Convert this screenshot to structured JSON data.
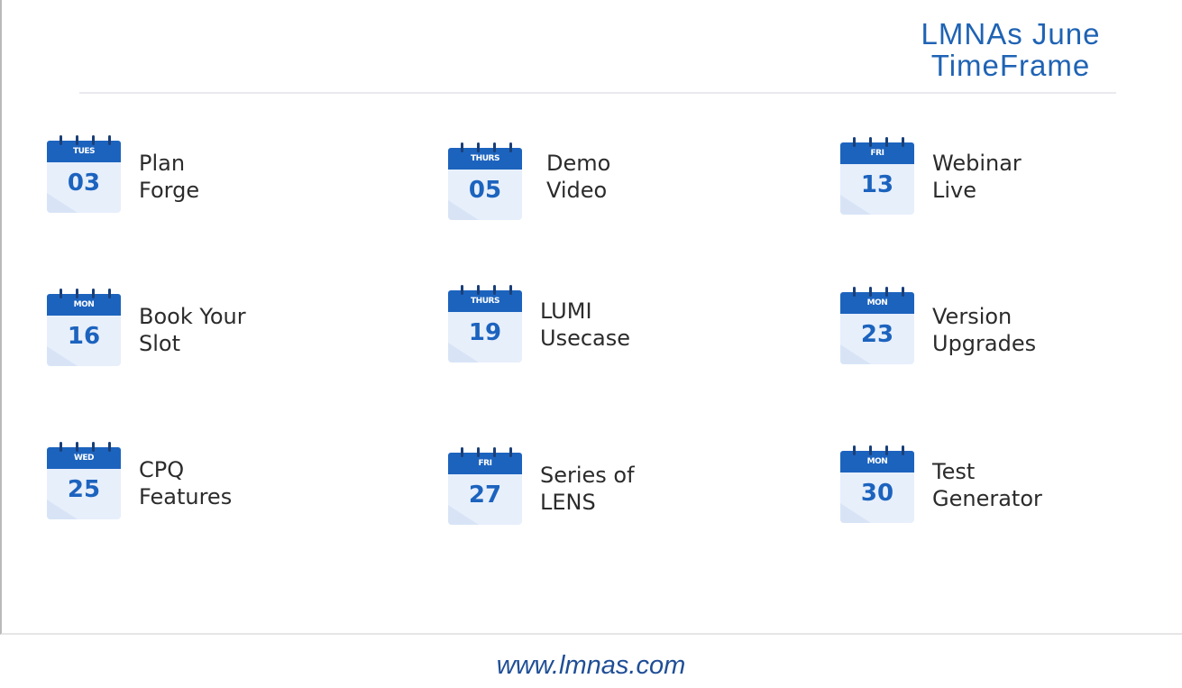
{
  "header": {
    "title_line1": "LMNAs June",
    "title_line2": "TimeFrame"
  },
  "events": [
    {
      "weekday": "TUES",
      "day": "03",
      "line1": "Plan",
      "line2": "Forge"
    },
    {
      "weekday": "THURS",
      "day": "05",
      "line1": "Demo",
      "line2": "Video"
    },
    {
      "weekday": "FRI",
      "day": "13",
      "line1": "Webinar",
      "line2": "Live"
    },
    {
      "weekday": "MON",
      "day": "16",
      "line1": "Book Your",
      "line2": "Slot"
    },
    {
      "weekday": "THURS",
      "day": "19",
      "line1": "LUMI",
      "line2": "Usecase"
    },
    {
      "weekday": "MON",
      "day": "23",
      "line1": "Version",
      "line2": "Upgrades"
    },
    {
      "weekday": "WED",
      "day": "25",
      "line1": "CPQ",
      "line2": "Features"
    },
    {
      "weekday": "FRI",
      "day": "27",
      "line1": "Series of",
      "line2": "LENS"
    },
    {
      "weekday": "MON",
      "day": "30",
      "line1": "Test",
      "line2": "Generator"
    }
  ],
  "footer": {
    "url": "www.lmnas.com"
  },
  "colors": {
    "accent": "#1c63be",
    "title": "#1f63b4",
    "calendar_body": "#e7effb",
    "footer": "#1f4e96"
  },
  "icons": {
    "event_icon": "calendar-icon"
  }
}
